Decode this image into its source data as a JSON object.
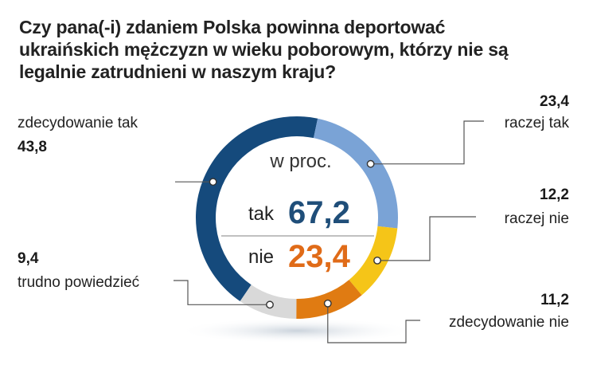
{
  "title_lines": [
    "Czy pana(-i) zdaniem Polska powinna deportować",
    "ukraińskich mężczyzn w wieku poborowym, którzy nie są",
    "legalnie zatrudnieni w naszym kraju?"
  ],
  "center": {
    "unit": "w proc.",
    "yes_label": "tak",
    "yes_value": "67,2",
    "no_label": "nie",
    "no_value": "23,4",
    "yes_color": "#1f4e79",
    "no_color": "#e06b18"
  },
  "chart_data": {
    "type": "pie",
    "variant": "donut",
    "unit": "w proc.",
    "slices": [
      {
        "label": "zdecydowanie tak",
        "value": 43.8,
        "value_text": "43,8",
        "color": "#154a7c"
      },
      {
        "label": "raczej tak",
        "value": 23.4,
        "value_text": "23,4",
        "color": "#7aa3d6"
      },
      {
        "label": "raczej nie",
        "value": 12.2,
        "value_text": "12,2",
        "color": "#f5c518"
      },
      {
        "label": "zdecydowanie nie",
        "value": 11.2,
        "value_text": "11,2",
        "color": "#e07b12"
      },
      {
        "label": "trudno powiedzieć",
        "value": 9.4,
        "value_text": "9,4",
        "color": "#d9d9d9"
      }
    ]
  }
}
